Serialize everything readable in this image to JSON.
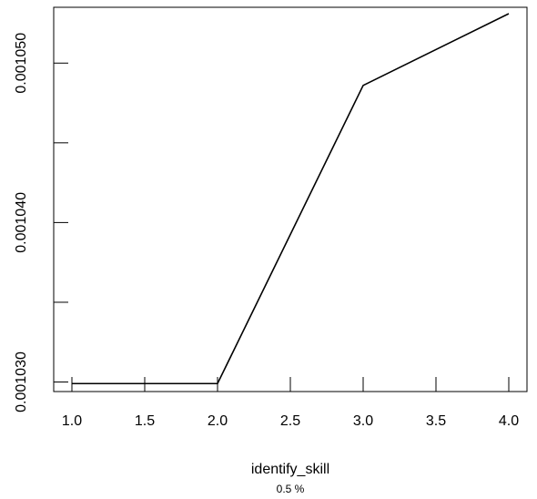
{
  "chart_data": {
    "type": "line",
    "xlabel": "identify_skill",
    "subtitle": "0.5 %",
    "ylabel": "",
    "xlim": [
      0.875,
      4.125
    ],
    "ylim": [
      0.0010294,
      0.0010535
    ],
    "x_ticks": [
      1.0,
      1.5,
      2.0,
      2.5,
      3.0,
      3.5,
      4.0
    ],
    "x_tick_labels": [
      "1.0",
      "1.5",
      "2.0",
      "2.5",
      "3.0",
      "3.5",
      "4.0"
    ],
    "y_ticks": [
      0.00103,
      0.001035,
      0.00104,
      0.001045,
      0.00105
    ],
    "y_tick_labels": [
      "0.001030",
      "",
      "0.001040",
      "",
      "0.001050"
    ],
    "grid": false,
    "series": [
      {
        "x": [
          1.0,
          2.0,
          3.0,
          4.0
        ],
        "y": [
          0.0010299,
          0.0010299,
          0.0010486,
          0.0010531
        ]
      }
    ]
  }
}
